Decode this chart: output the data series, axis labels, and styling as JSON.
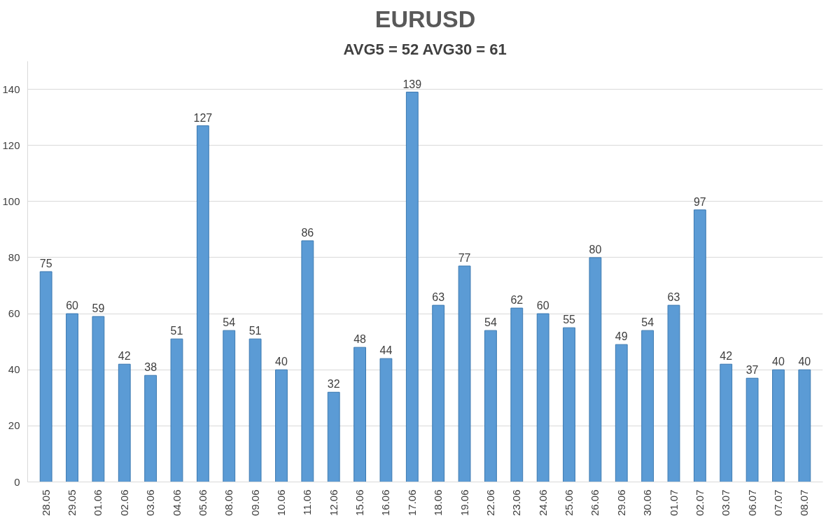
{
  "chart_data": {
    "type": "bar",
    "title": "EURUSD",
    "subtitle": "AVG5 = 52 AVG30 = 61",
    "categories": [
      "28.05",
      "29.05",
      "01.06",
      "02.06",
      "03.06",
      "04.06",
      "05.06",
      "08.06",
      "09.06",
      "10.06",
      "11.06",
      "12.06",
      "15.06",
      "16.06",
      "17.06",
      "18.06",
      "19.06",
      "22.06",
      "23.06",
      "24.06",
      "25.06",
      "26.06",
      "29.06",
      "30.06",
      "01.07",
      "02.07",
      "03.07",
      "06.07",
      "07.07",
      "08.07"
    ],
    "values": [
      75,
      60,
      59,
      42,
      38,
      51,
      127,
      54,
      51,
      40,
      86,
      32,
      48,
      44,
      139,
      63,
      77,
      54,
      62,
      60,
      55,
      80,
      49,
      54,
      63,
      97,
      42,
      37,
      40,
      40
    ],
    "color": "#5b9bd5",
    "ylim": [
      0,
      150
    ],
    "yticks": [
      0,
      20,
      40,
      60,
      80,
      100,
      120,
      140
    ],
    "grid": "y",
    "data_labels": true
  }
}
